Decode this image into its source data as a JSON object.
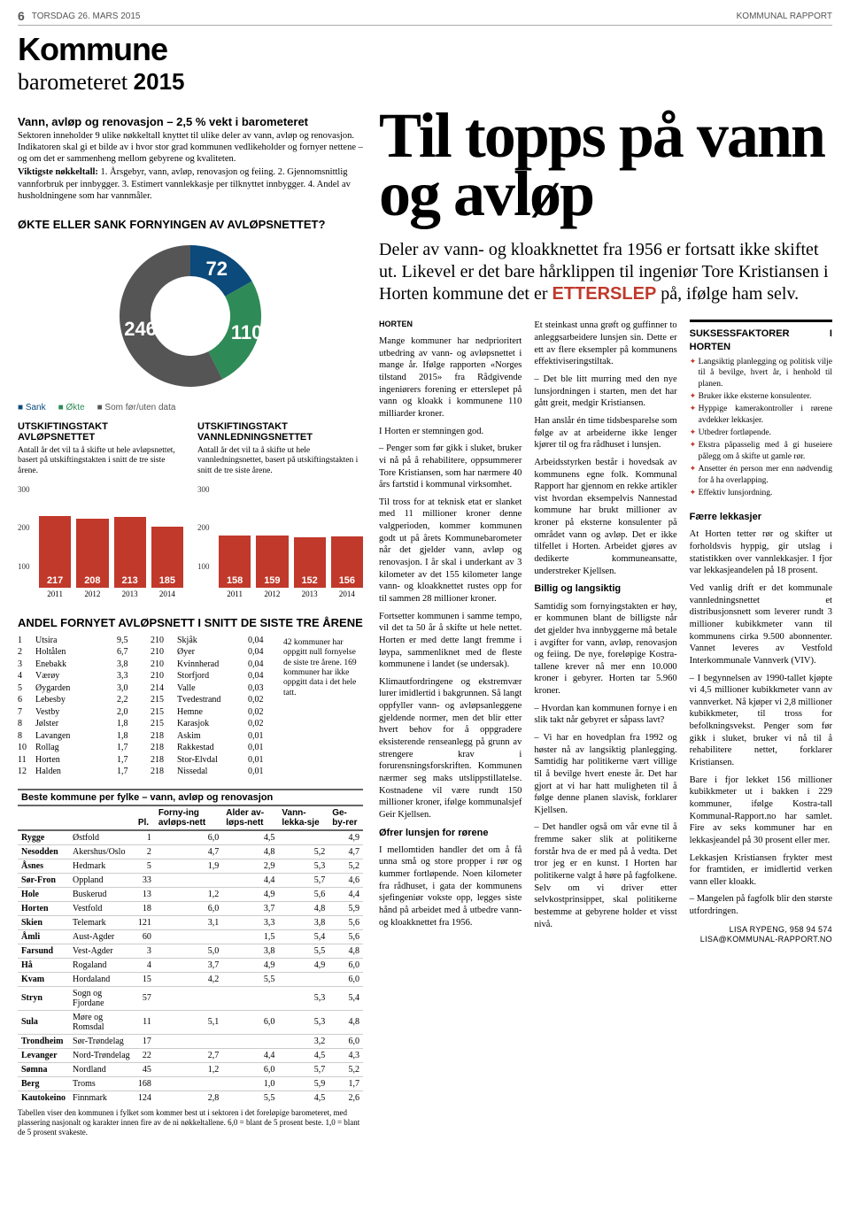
{
  "header": {
    "page_number": "6",
    "date": "TORSDAG 26. MARS 2015",
    "paper": "KOMMUNAL RAPPORT"
  },
  "masthead": {
    "line1": "Kommune",
    "line2a": "barometeret ",
    "line2b": "2015"
  },
  "intro": {
    "title": "Vann, avløp og renovasjon – 2,5 % vekt i barometeret",
    "body": "Sektoren inneholder 9 ulike nøkkeltall knyttet til ulike deler av vann, avløp og renovasjon. Indikatoren skal gi et bilde av i hvor stor grad kommunen vedlikeholder og fornyer nettene – og om det er sammenheng mellom gebyrene og kvaliteten.",
    "key_label": "Viktigste nøkkeltall:",
    "keys": "1. Årsgebyr, vann, avløp, renovasjon og feiing. 2. Gjennomsnittlig vannforbruk per innbygger. 3. Estimert vannlekkasje per tilknyttet innbygger. 4. Andel av husholdningene som har vannmåler."
  },
  "donut": {
    "title": "ØKTE ELLER SANK FORNYINGEN AV AVLØPSNETTET?",
    "values": {
      "sank": 72,
      "okte": 110,
      "uten": 246
    },
    "colors": {
      "sank": "#0b4a7a",
      "okte": "#2e8b57",
      "uten": "#555555"
    },
    "legend": {
      "sank": "Sank",
      "okte": "Økte",
      "uten": "Som før/uten data"
    }
  },
  "charts": {
    "avlop": {
      "title": "UTSKIFTINGSTAKT AVLØPSNETTET",
      "exp": "Antall år det vil ta å skifte ut hele avløpsnettet, basert på utskiftingstakten i snitt de tre siste årene.",
      "ymax": 300,
      "yticks": [
        "300",
        "200",
        "100"
      ],
      "bars": [
        {
          "year": "2011",
          "v": 217
        },
        {
          "year": "2012",
          "v": 208
        },
        {
          "year": "2013",
          "v": 213
        },
        {
          "year": "2014",
          "v": 185
        }
      ],
      "color": "#c0392b"
    },
    "vann": {
      "title": "UTSKIFTINGSTAKT VANNLEDNINGSNETTET",
      "exp": "Antall år det vil ta å skifte ut hele vannledningsnettet, basert på utskiftingstakten i snitt de tre siste årene.",
      "ymax": 300,
      "yticks": [
        "300",
        "200",
        "100"
      ],
      "bars": [
        {
          "year": "2011",
          "v": 158
        },
        {
          "year": "2012",
          "v": 159
        },
        {
          "year": "2013",
          "v": 152
        },
        {
          "year": "2014",
          "v": 156
        }
      ],
      "color": "#c0392b"
    }
  },
  "andel": {
    "title": "ANDEL FORNYET AVLØPSNETT I SNITT DE SISTE TRE ÅRENE",
    "left": [
      [
        "1",
        "Utsira",
        "9,5"
      ],
      [
        "2",
        "Holtålen",
        "6,7"
      ],
      [
        "3",
        "Enebakk",
        "3,8"
      ],
      [
        "4",
        "Værøy",
        "3,3"
      ],
      [
        "5",
        "Øygarden",
        "3,0"
      ],
      [
        "6",
        "Lebesby",
        "2,2"
      ],
      [
        "7",
        "Vestby",
        "2,0"
      ],
      [
        "8",
        "Jølster",
        "1,8"
      ],
      [
        "8",
        "Lavangen",
        "1,8"
      ],
      [
        "10",
        "Rollag",
        "1,7"
      ],
      [
        "11",
        "Horten",
        "1,7"
      ],
      [
        "12",
        "Halden",
        "1,7"
      ]
    ],
    "right": [
      [
        "210",
        "Skjåk",
        "0,04"
      ],
      [
        "210",
        "Øyer",
        "0,04"
      ],
      [
        "210",
        "Kvinnherad",
        "0,04"
      ],
      [
        "210",
        "Storfjord",
        "0,04"
      ],
      [
        "214",
        "Valle",
        "0,03"
      ],
      [
        "215",
        "Tvedestrand",
        "0,02"
      ],
      [
        "215",
        "Hemne",
        "0,02"
      ],
      [
        "215",
        "Karasjok",
        "0,02"
      ],
      [
        "218",
        "Askim",
        "0,01"
      ],
      [
        "218",
        "Rakkestad",
        "0,01"
      ],
      [
        "218",
        "Stor-Elvdal",
        "0,01"
      ],
      [
        "218",
        "Nissedal",
        "0,01"
      ]
    ],
    "note": "42 kommuner har oppgitt null fornyelse de siste tre årene. 169 kommuner har ikke oppgitt data i det hele tatt."
  },
  "fylke": {
    "caption": "Beste kommune per fylke – vann, avløp og renovasjon",
    "headers": [
      "",
      "",
      "Pl.",
      "Forny-ing avløps-nett",
      "Alder av-løps-nett",
      "Vann-lekka-sje",
      "Ge-by-rer"
    ],
    "rows": [
      [
        "Rygge",
        "Østfold",
        "1",
        "6,0",
        "4,5",
        "",
        "4,9"
      ],
      [
        "Nesodden",
        "Akershus/Oslo",
        "2",
        "4,7",
        "4,8",
        "5,2",
        "4,7"
      ],
      [
        "Åsnes",
        "Hedmark",
        "5",
        "1,9",
        "2,9",
        "5,3",
        "5,2"
      ],
      [
        "Sør-Fron",
        "Oppland",
        "33",
        "",
        "4,4",
        "5,7",
        "4,6"
      ],
      [
        "Hole",
        "Buskerud",
        "13",
        "1,2",
        "4,9",
        "5,6",
        "4,4"
      ],
      [
        "Horten",
        "Vestfold",
        "18",
        "6,0",
        "3,7",
        "4,8",
        "5,9"
      ],
      [
        "Skien",
        "Telemark",
        "121",
        "3,1",
        "3,3",
        "3,8",
        "5,6"
      ],
      [
        "Åmli",
        "Aust-Agder",
        "60",
        "",
        "1,5",
        "5,4",
        "5,6"
      ],
      [
        "Farsund",
        "Vest-Agder",
        "3",
        "5,0",
        "3,8",
        "5,5",
        "4,8"
      ],
      [
        "Hå",
        "Rogaland",
        "4",
        "3,7",
        "4,9",
        "4,9",
        "6,0"
      ],
      [
        "Kvam",
        "Hordaland",
        "15",
        "4,2",
        "5,5",
        "",
        "6,0"
      ],
      [
        "Stryn",
        "Sogn og Fjordane",
        "57",
        "",
        "",
        "5,3",
        "5,4"
      ],
      [
        "Sula",
        "Møre og Romsdal",
        "11",
        "5,1",
        "6,0",
        "5,3",
        "4,8"
      ],
      [
        "Trondheim",
        "Sør-Trøndelag",
        "17",
        "",
        "",
        "3,2",
        "6,0"
      ],
      [
        "Levanger",
        "Nord-Trøndelag",
        "22",
        "2,7",
        "4,4",
        "4,5",
        "4,3"
      ],
      [
        "Sømna",
        "Nordland",
        "45",
        "1,2",
        "6,0",
        "5,7",
        "5,2"
      ],
      [
        "Berg",
        "Troms",
        "168",
        "",
        "1,0",
        "5,9",
        "1,7"
      ],
      [
        "Kautokeino",
        "Finnmark",
        "124",
        "2,8",
        "5,5",
        "4,5",
        "2,6"
      ]
    ],
    "footnote": "Tabellen viser den kommunen i fylket som kommer best ut i sektoren i det foreløpige barometeret, med plassering nasjonalt og karakter innen fire av de ni nøkkeltallene. 6,0 = blant de 5 prosent beste. 1,0 = blant de 5 prosent svakeste."
  },
  "article": {
    "headline": "Til topps på vann og avløp",
    "standfirst_a": "Deler av vann- og kloakknettet fra 1956 er fortsatt ikke skiftet ut. Likevel er det bare hårklippen til ingeniør Tore Kristiansen i Horten kommune det er ",
    "standfirst_hl": "ETTERSLEP",
    "standfirst_b": " på, ifølge ham selv.",
    "location": "HORTEN",
    "paras": [
      "Mange kommuner har nedprioritert utbedring av vann- og avløpsnettet i mange år. Ifølge rapporten «Norges tilstand 2015» fra Rådgivende ingeniørers forening er etterslepet på vann og kloakk i kommunene 110 milliarder kroner.",
      "I Horten er stemningen god.",
      "– Penger som før gikk i sluket, bruker vi nå på å rehabilitere, oppsummerer Tore Kristiansen, som har nærmere 40 års fartstid i kommunal virksomhet.",
      "Til tross for at teknisk etat er slanket med 11 millioner kroner denne valgperioden, kommer kommunen godt ut på årets Kommunebarometer når det gjelder vann, avløp og renovasjon. I år skal i underkant av 3 kilometer av det 155 kilometer lange vann- og kloakknettet rustes opp for til sammen 28 millioner kroner.",
      "Fortsetter kommunen i samme tempo, vil det ta 50 år å skifte ut hele nettet. Horten er med dette langt fremme i løypa, sammenliknet med de fleste kommunene i landet (se undersak).",
      "Klimautfordringene og ekstremvær lurer imidlertid i bakgrunnen. Så langt oppfyller vann- og avløpsanleggene gjeldende normer, men det blir etter hvert behov for å oppgradere eksisterende renseanlegg på grunn av strengere krav i forurensningsforskriften. Kommunen nærmer seg maks utslippstillatelse. Kostnadene vil være rundt 150 millioner kroner, ifølge kommunalsjef Geir Kjellsen."
    ],
    "sub1": "Øfrer lunsjen for rørene",
    "paras2": [
      "I mellomtiden handler det om å få unna små og store propper i rør og kummer fortløpende. Noen kilometer fra rådhuset, i gata der kommunens sjefingeniør vokste opp, legges siste hånd på arbeidet med å utbedre vann- og kloakknettet fra 1956.",
      "Et steinkast unna grøft og guffinner to anleggsarbeidere lunsjen sin. Dette er ett av flere eksempler på kommunens effektiviseringstiltak.",
      "– Det ble litt murring med den nye lunsjordningen i starten, men det har gått greit, medgir Kristiansen.",
      "Han anslår én time tidsbesparelse som følge av at arbeiderne ikke lenger kjører til og fra rådhuset i lunsjen.",
      "Arbeidsstyrken består i hovedsak av kommunens egne folk. Kommunal Rapport har gjennom en rekke artikler vist hvordan eksempelvis Nannestad kommune har brukt millioner av kroner på eksterne konsulenter på området vann og avløp. Det er ikke tilfellet i Horten. Arbeidet gjøres av dedikerte kommuneansatte, understreker Kjellsen."
    ],
    "sub2": "Billig og langsiktig",
    "paras3": [
      "Samtidig som fornyingstakten er høy, er kommunen blant de billigste når det gjelder hva innbyggerne må betale i avgifter for vann, avløp, renovasjon og feiing. De nye, foreløpige Kostra-tallene krever nå mer enn 10.000 kroner i gebyrer. Horten tar 5.960 kroner.",
      "– Hvordan kan kommunen fornye i en slik takt når gebyret er såpass lavt?",
      "– Vi har en hovedplan fra 1992 og høster nå av langsiktig planlegging. Samtidig har politikerne vært villige til å bevilge hvert eneste år. Det har gjort at vi har hatt muligheten til å følge denne planen slavisk, forklarer Kjellsen.",
      "– Det handler også om vår evne til å fremme saker slik at politikerne forstår hva de er med på å vedta. Det tror jeg er en kunst. I Horten har politikerne valgt å høre på fagfolkene. Selv om vi driver etter selvkostprinsippet, skal politikerne bestemme at gebyrene holder et visst nivå."
    ],
    "sub3": "Færre lekkasjer",
    "paras4": [
      "At Horten tetter rør og skifter ut forholdsvis hyppig, gir utslag i statistikken over vannlekkasjer. I fjor var lekkasjeandelen på 18 prosent.",
      "Ved vanlig drift er det kommunale vannledningsnettet et distribusjonsnett som leverer rundt 3 millioner kubikkmeter vann til kommunens cirka 9.500 abonnenter. Vannet leveres av Vestfold Interkommunale Vannverk (VIV).",
      "– I begynnelsen av 1990-tallet kjøpte vi 4,5 millioner kubikkmeter vann av vannverket. Nå kjøper vi 2,8 millioner kubikkmeter, til tross for befolkningsvekst. Penger som før gikk i sluket, bruker vi nå til å rehabilitere nettet, forklarer Kristiansen.",
      "Bare i fjor lekket 156 millioner kubikkmeter ut i bakken i 229 kommuner, ifølge Kostra-tall Kommunal-Rapport.no har samlet. Fire av seks kommuner har en lekkasjeandel på 30 prosent eller mer.",
      "Lekkasjen Kristiansen frykter mest for framtiden, er imidlertid verken vann eller kloakk.",
      "– Mangelen på fagfolk blir den største utfordringen."
    ],
    "factbox": {
      "title": "SUKSESSFAKTORER I HORTEN",
      "items": [
        "Langsiktig planlegging og politisk vilje til å bevilge, hvert år, i henhold til planen.",
        "Bruker ikke eksterne konsulenter.",
        "Hyppige kamerakontroller i rørene avdekker lekkasjer.",
        "Utbedrer fortløpende.",
        "Ekstra påpasselig med å gi huseiere pålegg om å skifte ut gamle rør.",
        "Ansetter én person mer enn nødvendig for å ha overlapping.",
        "Effektiv lunsjordning."
      ]
    },
    "byline1": "LISA RYPENG, 958 94 574",
    "byline2": "lisa@kommunal-rapport.no"
  }
}
